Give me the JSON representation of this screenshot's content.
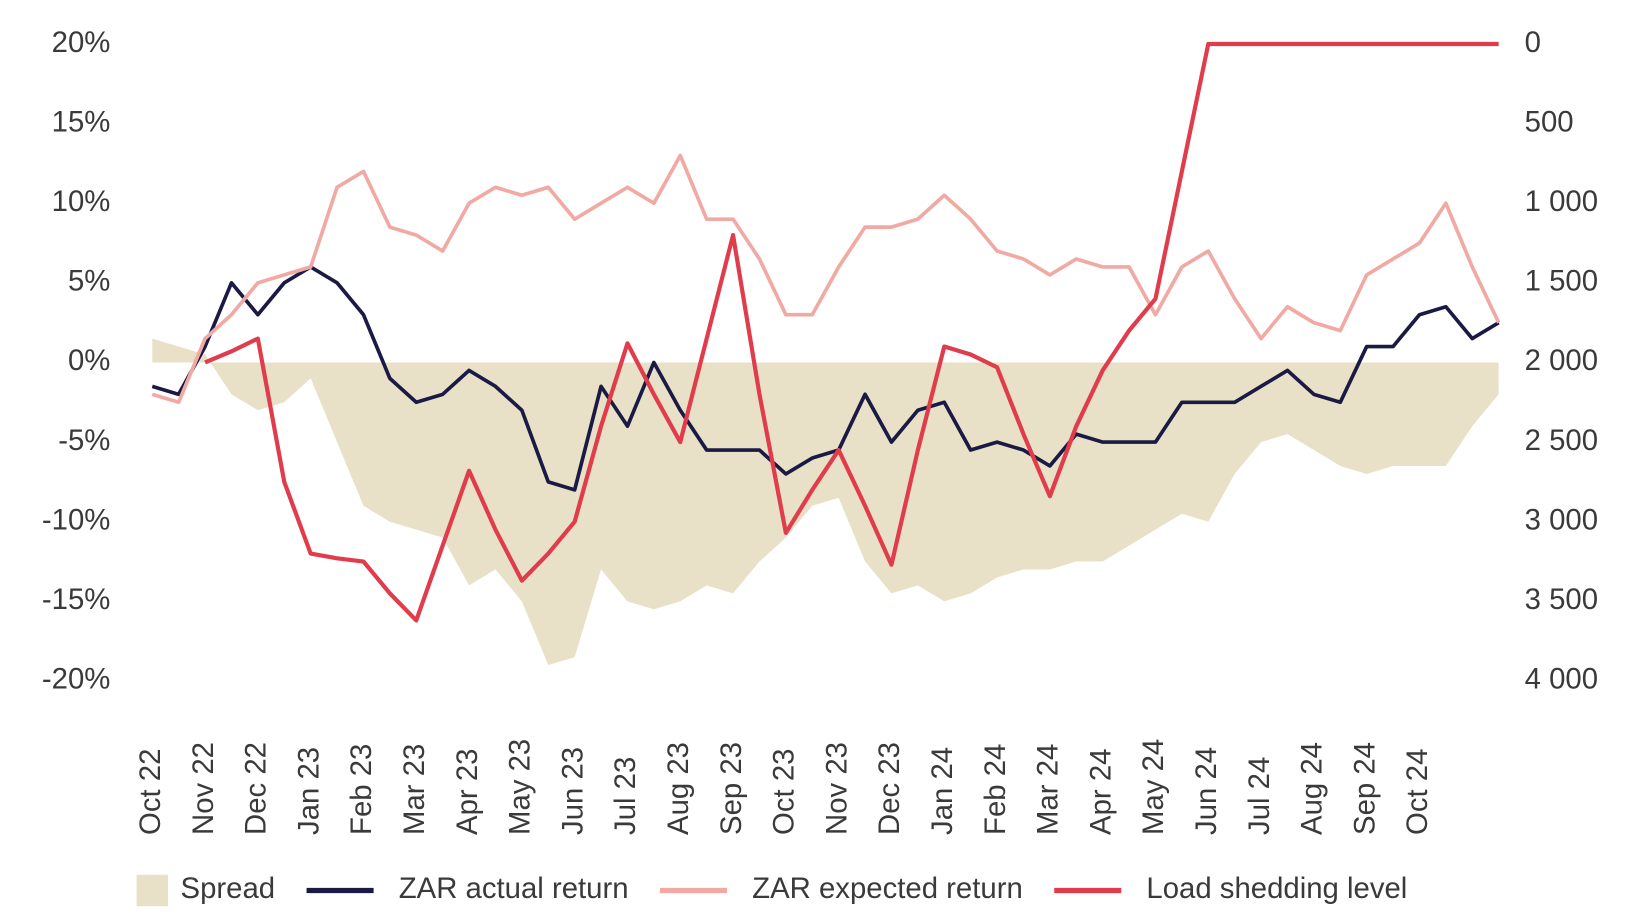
{
  "chart_data": {
    "type": "line",
    "categories": [
      "Oct 22",
      null,
      "Nov 22",
      null,
      "Dec 22",
      null,
      "Jan 23",
      null,
      "Feb 23",
      null,
      "Mar 23",
      null,
      "Apr 23",
      null,
      "May 23",
      null,
      "Jun 23",
      null,
      "Jul 23",
      null,
      "Aug 23",
      null,
      "Sep 23",
      null,
      "Oct 23",
      null,
      "Nov 23",
      null,
      "Dec 23",
      null,
      "Jan 24",
      null,
      "Feb 24",
      null,
      "Mar 24",
      null,
      "Apr 24",
      null,
      "May 24",
      null,
      "Jun 24",
      null,
      "Jul 24",
      null,
      "Aug 24",
      null,
      "Sep 24",
      null,
      "Oct 24",
      null,
      null,
      null
    ],
    "ylim": [
      -20,
      20
    ],
    "yticks": [
      {
        "value": 20,
        "label": "20%"
      },
      {
        "value": 15,
        "label": "15%"
      },
      {
        "value": 10,
        "label": "10%"
      },
      {
        "value": 5,
        "label": "5%"
      },
      {
        "value": 0,
        "label": "0%"
      },
      {
        "value": -5,
        "label": "-5%"
      },
      {
        "value": -10,
        "label": "-10%"
      },
      {
        "value": -15,
        "label": "-15%"
      },
      {
        "value": -20,
        "label": "-20%"
      }
    ],
    "y2lim": [
      4000,
      0
    ],
    "y2ticks": [
      0,
      500,
      {
        "value": 1000,
        "label": "1 000"
      },
      {
        "value": 1500,
        "label": "1 500"
      },
      {
        "value": 2000,
        "label": "2 000"
      },
      {
        "value": 2500,
        "label": "2 500"
      },
      {
        "value": 3000,
        "label": "3 000"
      },
      {
        "value": 3500,
        "label": "3 500"
      },
      {
        "value": 4000,
        "label": "4 000"
      }
    ],
    "legend": "bottom",
    "series": [
      {
        "name": "Spread",
        "type": "area",
        "color": "#e8e1c8",
        "values": [
          1.5,
          1,
          0.5,
          -2,
          -3,
          -2.5,
          -1,
          -5,
          -9,
          -10,
          -10.5,
          -11,
          -14,
          -13,
          -15,
          -19,
          -18.5,
          -13,
          -15,
          -15.5,
          -15,
          -14,
          -14.5,
          -12.5,
          -11,
          -9,
          -8.5,
          -12.5,
          -14.5,
          -14,
          -15,
          -14.5,
          -13.5,
          -13,
          -13,
          -12.5,
          -12.5,
          -11.5,
          -10.5,
          -9.5,
          -10,
          -7,
          -5,
          -4.5,
          -5.5,
          -6.5,
          -7,
          -6.5,
          -6.5,
          -6.5,
          -4,
          -2
        ]
      },
      {
        "name": "ZAR actual return",
        "type": "line",
        "color": "#1b1a45",
        "values": [
          -1.5,
          -2,
          1,
          5,
          3,
          5,
          6,
          5,
          3,
          -1,
          -2.5,
          -2,
          -0.5,
          -1.5,
          -3,
          -7.5,
          -8,
          -1.5,
          -4,
          0,
          -3,
          -5.5,
          -5.5,
          -5.5,
          -7,
          -6,
          -5.5,
          -2,
          -5,
          -3,
          -2.5,
          -5.5,
          -5,
          -5.5,
          -6.5,
          -4.5,
          -5,
          -5,
          -5,
          -2.5,
          -2.5,
          -2.5,
          -1.5,
          -0.5,
          -2,
          -2.5,
          1,
          1,
          3,
          3.5,
          1.5,
          2.5
        ]
      },
      {
        "name": "ZAR expected return",
        "type": "line",
        "color": "#f0aaa3",
        "values": [
          -2,
          -2.5,
          1.5,
          3,
          5,
          5.5,
          6,
          11,
          12,
          8.5,
          8,
          7,
          10,
          11,
          10.5,
          11,
          9,
          10,
          11,
          10,
          13,
          9,
          9,
          6.5,
          3,
          3,
          6,
          8.5,
          8.5,
          9,
          10.5,
          9,
          7,
          6.5,
          5.5,
          6.5,
          6,
          6,
          3,
          6,
          7,
          4,
          1.5,
          3.5,
          2.5,
          2,
          5.5,
          6.5,
          7.5,
          10,
          6,
          2.5
        ]
      },
      {
        "name": "Load shedding level",
        "type": "line",
        "axis": "y2",
        "color": "#e03c4b",
        "values": [
          null,
          null,
          2000,
          1930,
          1850,
          2750,
          3200,
          3230,
          3250,
          3450,
          3620,
          3150,
          2680,
          3050,
          3370,
          3200,
          3000,
          2400,
          1880,
          2200,
          2500,
          1850,
          1200,
          2200,
          3070,
          2800,
          2550,
          2900,
          3270,
          2550,
          1900,
          1950,
          2030,
          2450,
          2840,
          2400,
          2050,
          1800,
          1600,
          800,
          0,
          0,
          0,
          0,
          0,
          0,
          0,
          0,
          0,
          0,
          0,
          0
        ]
      }
    ]
  }
}
